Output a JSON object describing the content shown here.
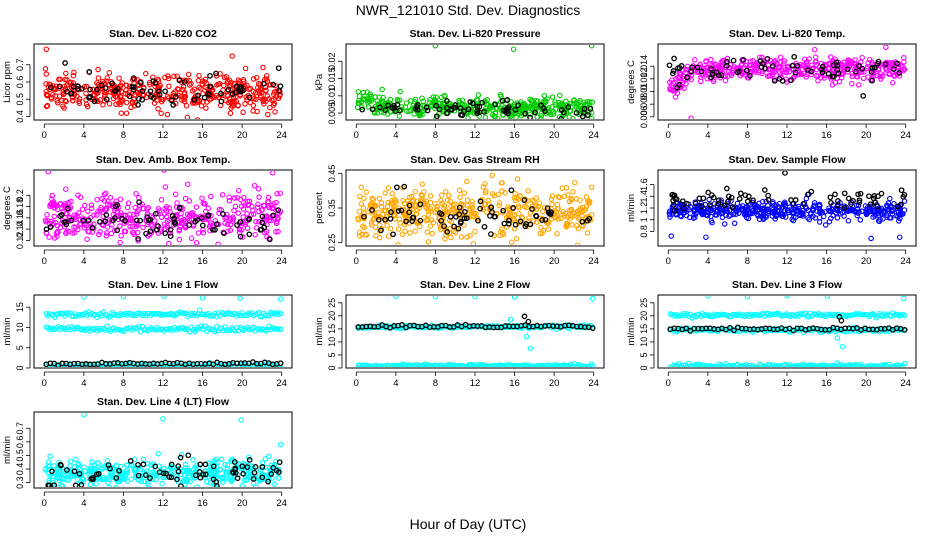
{
  "figure": {
    "title": "NWR_121010  Std. Dev. Diagnostics",
    "xlabel": "Hour of Day (UTC)"
  },
  "chart_data": [
    {
      "type": "scatter",
      "title": "Stan. Dev. Li-820 CO2",
      "ylabel": "Licor ppm",
      "xlim": [
        0,
        24
      ],
      "xticks": [
        0,
        4,
        8,
        12,
        16,
        20,
        24
      ],
      "ylim": [
        0.38,
        0.82
      ],
      "yticks": [
        0.4,
        0.5,
        0.6,
        0.7
      ],
      "series": [
        {
          "color": "#ff0000",
          "base": 0.54,
          "spread": 0.05,
          "n": 420,
          "outliers": [
            [
              0.2,
              0.79
            ],
            [
              15.5,
              0.38
            ],
            [
              19.0,
              0.75
            ]
          ]
        },
        {
          "color": "#000000",
          "base": 0.55,
          "spread": 0.045,
          "n": 70,
          "outliers": [
            [
              2.1,
              0.71
            ],
            [
              23.7,
              0.68
            ]
          ]
        }
      ]
    },
    {
      "type": "scatter",
      "title": "Stan. Dev. Li-820 Pressure",
      "ylabel": "kPa",
      "xlim": [
        0,
        24
      ],
      "xticks": [
        0,
        4,
        8,
        12,
        16,
        20,
        24
      ],
      "ylim": [
        0.003,
        0.025
      ],
      "yticks": [
        0.005,
        0.01,
        0.015,
        0.02
      ],
      "series": [
        {
          "color": "#00cc00",
          "base": 0.0065,
          "spread": 0.0015,
          "n": 420,
          "early": [
            0,
            3.5,
            0.0095
          ],
          "outliers": [
            [
              8.0,
              0.0245
            ],
            [
              15.9,
              0.0235
            ],
            [
              23.8,
              0.0245
            ]
          ]
        },
        {
          "color": "#000000",
          "base": 0.0062,
          "spread": 0.0011,
          "n": 70,
          "outliers": []
        }
      ]
    },
    {
      "type": "scatter",
      "title": "Stan. Dev. Li-820 Temp.",
      "ylabel": "degrees C",
      "xlim": [
        0,
        24
      ],
      "xticks": [
        0,
        4,
        8,
        12,
        16,
        20,
        24
      ],
      "ylim": [
        0.0055,
        0.0175
      ],
      "yticks": [
        0.006,
        0.008,
        0.01,
        0.012,
        0.014
      ],
      "series": [
        {
          "color": "#ff00ff",
          "base": 0.0134,
          "spread": 0.0009,
          "n": 420,
          "early": [
            0,
            3.0,
            0.0105
          ],
          "outliers": [
            [
              2.3,
              0.0058
            ],
            [
              14.8,
              0.0166
            ],
            [
              22.0,
              0.017
            ]
          ]
        },
        {
          "color": "#000000",
          "base": 0.0136,
          "spread": 0.0009,
          "n": 70,
          "outliers": [
            [
              19.7,
              0.0093
            ]
          ]
        }
      ]
    },
    {
      "type": "scatter",
      "title": "Stan. Dev. Amb. Box Temp.",
      "ylabel": "degrees C",
      "xlim": [
        0,
        24
      ],
      "xticks": [
        0,
        4,
        8,
        12,
        16,
        20,
        24
      ],
      "ylim": [
        0.11,
        0.245
      ],
      "yticks": [
        0.12,
        0.14,
        0.16,
        0.18,
        0.2
      ],
      "series": [
        {
          "color": "#ff00ff",
          "base": 0.16,
          "spread": 0.022,
          "n": 420,
          "outliers": [
            [
              0.4,
              0.242
            ],
            [
              12.1,
              0.245
            ],
            [
              23.1,
              0.24
            ]
          ]
        },
        {
          "color": "#000000",
          "base": 0.152,
          "spread": 0.017,
          "n": 70,
          "outliers": []
        }
      ]
    },
    {
      "type": "scatter",
      "title": "Stan. Dev. Gas Stream RH",
      "ylabel": "percent",
      "xlim": [
        0,
        24
      ],
      "xticks": [
        0,
        4,
        8,
        12,
        16,
        20,
        24
      ],
      "ylim": [
        0.24,
        0.46
      ],
      "yticks": [
        0.25,
        0.35,
        0.45
      ],
      "series": [
        {
          "color": "#ffa500",
          "base": 0.335,
          "spread": 0.035,
          "n": 460,
          "outliers": [
            [
              0.5,
              0.41
            ],
            [
              23.8,
              0.41
            ]
          ]
        },
        {
          "color": "#000000",
          "base": 0.33,
          "spread": 0.03,
          "n": 70,
          "outliers": [
            [
              4.1,
              0.41
            ]
          ]
        }
      ]
    },
    {
      "type": "scatter",
      "title": "Stan. Dev. Sample Flow",
      "ylabel": "ml/min",
      "xlim": [
        0,
        24
      ],
      "xticks": [
        0,
        4,
        8,
        12,
        16,
        20,
        24
      ],
      "ylim": [
        0.55,
        1.85
      ],
      "yticks": [
        0.8,
        1.0,
        1.2,
        1.4,
        1.6
      ],
      "series": [
        {
          "color": "#0000ff",
          "base": 1.15,
          "spread": 0.08,
          "n": 420,
          "outliers": [
            [
              0.3,
              0.72
            ],
            [
              3.8,
              0.7
            ],
            [
              20.5,
              0.68
            ],
            [
              23.4,
              0.7
            ]
          ]
        },
        {
          "color": "#000000",
          "base": 1.35,
          "spread": 0.09,
          "n": 70,
          "outliers": [
            [
              11.8,
              1.8
            ]
          ]
        }
      ]
    },
    {
      "type": "scatter",
      "title": "Stan. Dev. Line 1 Flow",
      "ylabel": "ml/min",
      "xlim": [
        0,
        24
      ],
      "xticks": [
        0,
        4,
        8,
        12,
        16,
        20,
        24
      ],
      "ylim": [
        0,
        18
      ],
      "yticks": [
        0,
        5,
        10,
        15
      ],
      "series": [
        {
          "color": "#00ffff",
          "bands": [
            13.2,
            9.6,
            0.6
          ],
          "spread": 0.3,
          "n": 140,
          "outliers": [
            [
              4.0,
              17.5
            ],
            [
              8.0,
              17.6
            ],
            [
              12.1,
              17.7
            ],
            [
              16.0,
              17.3
            ],
            [
              19.8,
              17.2
            ],
            [
              23.9,
              17.0
            ]
          ]
        },
        {
          "color": "#000000",
          "bands": [
            1.1
          ],
          "spread": 0.15,
          "n": 60,
          "outliers": []
        }
      ]
    },
    {
      "type": "scatter",
      "title": "Stan. Dev. Line 2 Flow",
      "ylabel": "ml/min",
      "xlim": [
        0,
        24
      ],
      "xticks": [
        0,
        4,
        8,
        12,
        16,
        20,
        24
      ],
      "ylim": [
        0,
        28
      ],
      "yticks": [
        0,
        5,
        10,
        15,
        20,
        25
      ],
      "series": [
        {
          "color": "#00ffff",
          "bands": [
            15.8,
            0.8
          ],
          "spread": 0.3,
          "n": 170,
          "outliers": [
            [
              4.0,
              27.5
            ],
            [
              8.0,
              27.4
            ],
            [
              12.0,
              27.4
            ],
            [
              16.0,
              27.2
            ],
            [
              23.9,
              26.6
            ],
            [
              17.6,
              7.5
            ],
            [
              17.2,
              12.0
            ],
            [
              15.6,
              18.6
            ]
          ]
        },
        {
          "color": "#000000",
          "bands": [
            16.0
          ],
          "spread": 0.3,
          "n": 60,
          "outliers": [
            [
              17.0,
              19.8
            ],
            [
              17.4,
              17.8
            ]
          ]
        }
      ]
    },
    {
      "type": "scatter",
      "title": "Stan. Dev. Line 3 Flow",
      "ylabel": "ml/min",
      "xlim": [
        0,
        24
      ],
      "xticks": [
        0,
        4,
        8,
        12,
        16,
        20,
        24
      ],
      "ylim": [
        0,
        28
      ],
      "yticks": [
        0,
        5,
        10,
        15,
        20,
        25
      ],
      "series": [
        {
          "color": "#00ffff",
          "bands": [
            20.3,
            14.6,
            0.8
          ],
          "spread": 0.35,
          "n": 140,
          "outliers": [
            [
              4.0,
              27.6
            ],
            [
              8.0,
              27.4
            ],
            [
              12.0,
              27.8
            ],
            [
              16.1,
              27.6
            ],
            [
              23.8,
              26.6
            ],
            [
              17.6,
              8.2
            ],
            [
              17.1,
              11.5
            ]
          ]
        },
        {
          "color": "#000000",
          "bands": [
            14.9
          ],
          "spread": 0.35,
          "n": 60,
          "outliers": [
            [
              17.3,
              19.6
            ],
            [
              17.5,
              18.2
            ]
          ]
        }
      ]
    },
    {
      "type": "scatter",
      "title": "Stan. Dev. Line 4 (LT) Flow",
      "ylabel": "ml/min",
      "xlim": [
        0,
        24
      ],
      "xticks": [
        0,
        4,
        8,
        12,
        16,
        20,
        24
      ],
      "ylim": [
        0.26,
        0.82
      ],
      "yticks": [
        0.3,
        0.4,
        0.5,
        0.6,
        0.7
      ],
      "series": [
        {
          "color": "#00ffff",
          "base": 0.37,
          "spread": 0.045,
          "n": 420,
          "outliers": [
            [
              4.0,
              0.8
            ],
            [
              12.0,
              0.77
            ],
            [
              19.9,
              0.76
            ],
            [
              23.9,
              0.58
            ]
          ]
        },
        {
          "color": "#000000",
          "base": 0.36,
          "spread": 0.05,
          "n": 70,
          "outliers": [
            [
              0.5,
              0.28
            ],
            [
              1.0,
              0.28
            ],
            [
              23.8,
              0.45
            ]
          ]
        }
      ]
    }
  ]
}
